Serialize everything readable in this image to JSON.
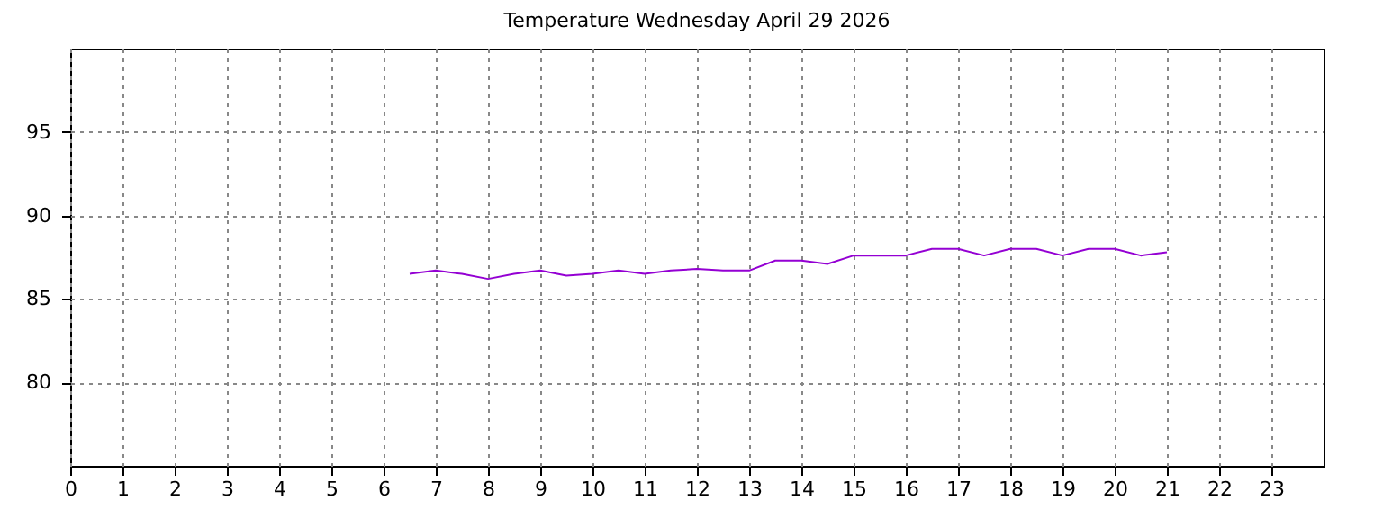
{
  "chart_data": {
    "type": "line",
    "title": "Temperature Wednesday April 29 2026",
    "x": [
      6.5,
      7,
      7.5,
      8,
      8.5,
      9,
      9.5,
      10,
      10.5,
      11,
      11.5,
      12,
      12.5,
      13,
      13.5,
      14,
      14.5,
      15,
      15.5,
      16,
      16.5,
      17,
      17.5,
      18,
      18.5,
      19,
      19.5,
      20,
      20.5,
      21
    ],
    "series": [
      {
        "color": "#9400d3",
        "values": [
          86.5,
          86.7,
          86.5,
          86.2,
          86.5,
          86.7,
          86.4,
          86.5,
          86.7,
          86.5,
          86.7,
          86.8,
          86.7,
          86.7,
          87.3,
          87.3,
          87.1,
          87.6,
          87.6,
          87.6,
          88.0,
          88.0,
          87.6,
          88.0,
          88.0,
          87.6,
          88.0,
          88.0,
          87.6,
          87.8
        ]
      }
    ],
    "xlim": [
      0,
      24
    ],
    "xticks": [
      0,
      1,
      2,
      3,
      4,
      5,
      6,
      7,
      8,
      9,
      10,
      11,
      12,
      13,
      14,
      15,
      16,
      17,
      18,
      19,
      20,
      21,
      22,
      23
    ],
    "ylim": [
      75,
      100
    ],
    "yticks": [
      80,
      85,
      90,
      95
    ],
    "grid": true,
    "marker": "none",
    "line_style": "solid"
  }
}
